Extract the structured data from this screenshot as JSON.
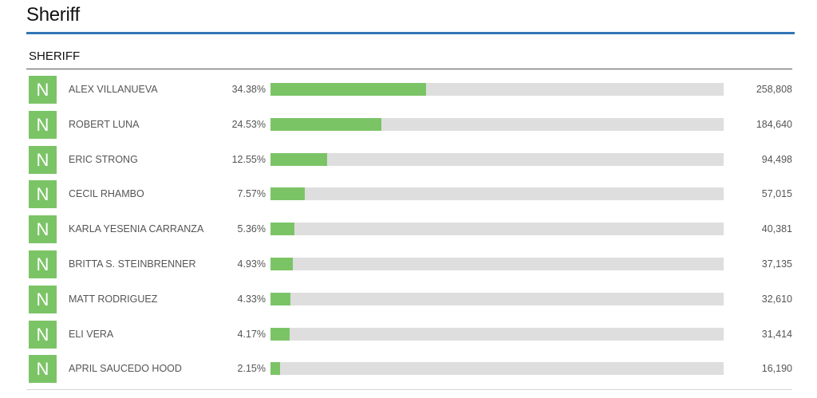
{
  "page": {
    "title": "Sheriff"
  },
  "contest": {
    "heading": "SHERIFF",
    "candidates": [
      {
        "badge": "N",
        "name": "ALEX VILLANUEVA",
        "percent_label": "34.38%",
        "percent": 34.38,
        "votes": "258,808"
      },
      {
        "badge": "N",
        "name": "ROBERT LUNA",
        "percent_label": "24.53%",
        "percent": 24.53,
        "votes": "184,640"
      },
      {
        "badge": "N",
        "name": "ERIC STRONG",
        "percent_label": "12.55%",
        "percent": 12.55,
        "votes": "94,498"
      },
      {
        "badge": "N",
        "name": "CECIL RHAMBO",
        "percent_label": "7.57%",
        "percent": 7.57,
        "votes": "57,015"
      },
      {
        "badge": "N",
        "name": "KARLA YESENIA CARRANZA",
        "percent_label": "5.36%",
        "percent": 5.36,
        "votes": "40,381"
      },
      {
        "badge": "N",
        "name": "BRITTA S. STEINBRENNER",
        "percent_label": "4.93%",
        "percent": 4.93,
        "votes": "37,135"
      },
      {
        "badge": "N",
        "name": "MATT RODRIGUEZ",
        "percent_label": "4.33%",
        "percent": 4.33,
        "votes": "32,610"
      },
      {
        "badge": "N",
        "name": "ELI VERA",
        "percent_label": "4.17%",
        "percent": 4.17,
        "votes": "31,414"
      },
      {
        "badge": "N",
        "name": "APRIL SAUCEDO HOOD",
        "percent_label": "2.15%",
        "percent": 2.15,
        "votes": "16,190"
      }
    ]
  },
  "colors": {
    "accent_rule": "#3276b7",
    "bar_fill": "#7bc466",
    "bar_track": "#dedede",
    "badge_bg": "#7bc466"
  }
}
